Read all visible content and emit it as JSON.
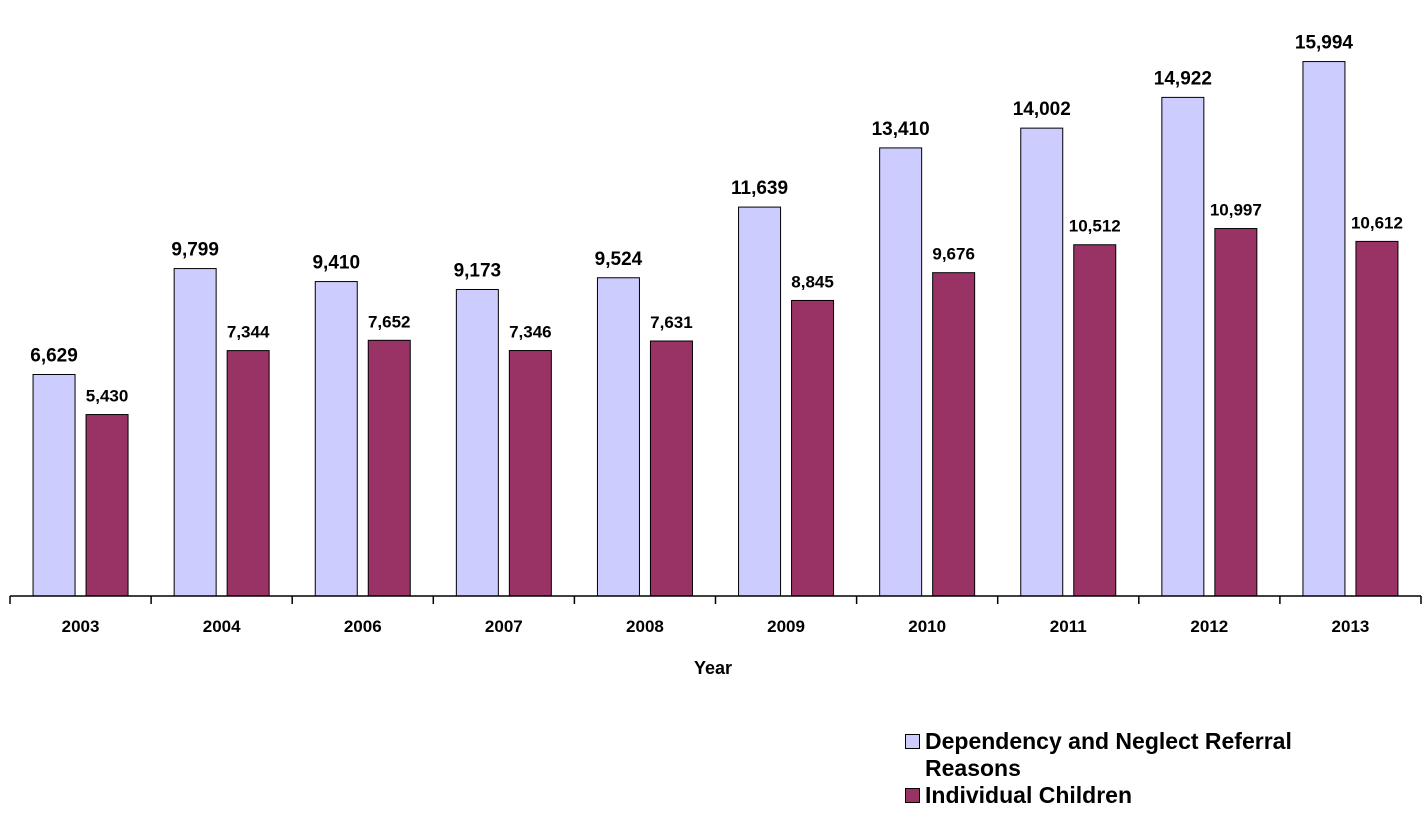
{
  "chart_data": {
    "type": "bar",
    "title": "",
    "xlabel": "Year",
    "ylabel": "",
    "ylim": [
      0,
      16400
    ],
    "categories": [
      "2003",
      "2004",
      "2006",
      "2007",
      "2008",
      "2009",
      "2010",
      "2011",
      "2012",
      "2013"
    ],
    "series": [
      {
        "name": "Dependency and Neglect Referral Reasons",
        "color": "#ccccff",
        "values": [
          6629,
          9799,
          9410,
          9173,
          9524,
          11639,
          13410,
          14002,
          14922,
          15994
        ],
        "labels": [
          "6,629",
          "9,799",
          "9,410",
          "9,173",
          "9,524",
          "11,639",
          "13,410",
          "14,002",
          "14,922",
          "15,994"
        ]
      },
      {
        "name": "Individual Children",
        "color": "#993366",
        "values": [
          5430,
          7344,
          7652,
          7346,
          7631,
          8845,
          9676,
          10512,
          10997,
          10612
        ],
        "labels": [
          "5,430",
          "7,344",
          "7,652",
          "7,346",
          "7,631",
          "8,845",
          "9,676",
          "10,512",
          "10,997",
          "10,612"
        ]
      }
    ],
    "grid": false,
    "legend_position": "bottom-right"
  }
}
